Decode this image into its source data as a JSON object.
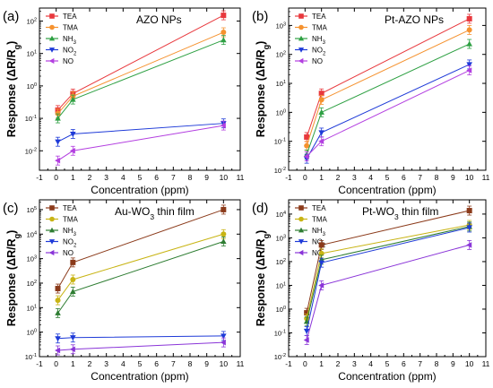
{
  "chart_data": [
    {
      "type": "line",
      "panel_label": "(a)",
      "title": "AZO NPs",
      "title_sub": "",
      "ylabel": "Response (ΔR/Rg)",
      "xlabel": "Concentration (ppm)",
      "xlim": [
        -1,
        11
      ],
      "xticks": [
        -1,
        0,
        1,
        2,
        3,
        4,
        5,
        6,
        7,
        8,
        9,
        10,
        11
      ],
      "ylim_exp": [
        -2.6,
        2.4
      ],
      "ylog": true,
      "yticks_exp": [
        -2,
        -1,
        0,
        1,
        2
      ],
      "x": [
        0.1,
        1,
        10
      ],
      "series": [
        {
          "name": "TEA",
          "name_sub": "",
          "color": "#e8383d",
          "marker": "square",
          "values": [
            0.18,
            0.58,
            150
          ]
        },
        {
          "name": "TMA",
          "name_sub": "",
          "color": "#f5922f",
          "marker": "circle",
          "values": [
            0.14,
            0.48,
            45
          ]
        },
        {
          "name": "NH",
          "name_sub": "3",
          "color": "#2ea043",
          "marker": "triangle-up",
          "values": [
            0.1,
            0.38,
            26
          ]
        },
        {
          "name": "NO",
          "name_sub": "2",
          "color": "#1f3bd8",
          "marker": "triangle-down",
          "values": [
            0.019,
            0.033,
            0.07
          ]
        },
        {
          "name": "NO",
          "name_sub": "",
          "color": "#b33fe0",
          "marker": "triangle-left",
          "values": [
            0.005,
            0.01,
            0.06
          ]
        }
      ]
    },
    {
      "type": "line",
      "panel_label": "(b)",
      "title": "Pt-AZO NPs",
      "title_sub": "",
      "ylabel": "Response (ΔR/Rg)",
      "xlabel": "Concentration (ppm)",
      "xlim": [
        -1,
        11
      ],
      "xticks": [
        -1,
        0,
        1,
        2,
        3,
        4,
        5,
        6,
        7,
        8,
        9,
        10,
        11
      ],
      "ylim_exp": [
        -2,
        3.6
      ],
      "ylog": true,
      "yticks_exp": [
        -2,
        -1,
        0,
        1,
        2,
        3
      ],
      "x": [
        0.1,
        1,
        10
      ],
      "series": [
        {
          "name": "TEA",
          "name_sub": "",
          "color": "#e8383d",
          "marker": "square",
          "values": [
            0.14,
            4.5,
            1700
          ]
        },
        {
          "name": "TMA",
          "name_sub": "",
          "color": "#f5922f",
          "marker": "circle",
          "values": [
            0.07,
            2.7,
            700
          ]
        },
        {
          "name": "NH",
          "name_sub": "3",
          "color": "#2ea043",
          "marker": "triangle-up",
          "values": [
            0.035,
            1.0,
            230
          ]
        },
        {
          "name": "NO",
          "name_sub": "2",
          "color": "#1f3bd8",
          "marker": "triangle-down",
          "values": [
            0.025,
            0.2,
            45
          ]
        },
        {
          "name": "NO",
          "name_sub": "",
          "color": "#b33fe0",
          "marker": "triangle-left",
          "values": [
            0.03,
            0.1,
            28
          ]
        }
      ]
    },
    {
      "type": "line",
      "panel_label": "(c)",
      "title": "Au-WO",
      "title_sub": "3",
      "title_after": " thin film",
      "ylabel": "Response (ΔR/Rg)",
      "xlabel": "Concentration (ppm)",
      "xlim": [
        -1,
        11
      ],
      "xticks": [
        -1,
        0,
        1,
        2,
        3,
        4,
        5,
        6,
        7,
        8,
        9,
        10,
        11
      ],
      "ylim_exp": [
        -1,
        5.4
      ],
      "ylog": true,
      "yticks_exp": [
        -1,
        0,
        1,
        2,
        3,
        4,
        5
      ],
      "x": [
        0.1,
        1,
        10
      ],
      "series": [
        {
          "name": "TEA",
          "name_sub": "",
          "color": "#8b3a1a",
          "marker": "square",
          "values": [
            60,
            700,
            100000
          ]
        },
        {
          "name": "TMA",
          "name_sub": "",
          "color": "#c8b414",
          "marker": "circle",
          "values": [
            20,
            140,
            10000
          ]
        },
        {
          "name": "NH",
          "name_sub": "3",
          "color": "#2e7d32",
          "marker": "triangle-up",
          "values": [
            6,
            45,
            5000
          ]
        },
        {
          "name": "NO",
          "name_sub": "2",
          "color": "#1f3bd8",
          "marker": "triangle-down",
          "values": [
            0.55,
            0.6,
            0.7
          ]
        },
        {
          "name": "NO",
          "name_sub": "",
          "color": "#8a35d8",
          "marker": "triangle-left",
          "values": [
            0.18,
            0.2,
            0.38
          ]
        }
      ]
    },
    {
      "type": "line",
      "panel_label": "(d)",
      "title": "Pt-WO",
      "title_sub": "3",
      "title_after": " thin film",
      "ylabel": "Response (ΔR/Rg)",
      "xlabel": "Concentration (ppm)",
      "xlim": [
        -1,
        11
      ],
      "xticks": [
        -1,
        0,
        1,
        2,
        3,
        4,
        5,
        6,
        7,
        8,
        9,
        10,
        11
      ],
      "ylim_exp": [
        -2,
        4.6
      ],
      "ylog": true,
      "yticks_exp": [
        -2,
        -1,
        0,
        1,
        2,
        3,
        4
      ],
      "x": [
        0.1,
        1,
        10
      ],
      "series": [
        {
          "name": "TEA",
          "name_sub": "",
          "color": "#8b3a1a",
          "marker": "square",
          "values": [
            0.7,
            500,
            14000
          ]
        },
        {
          "name": "TMA",
          "name_sub": "",
          "color": "#c8b414",
          "marker": "circle",
          "values": [
            0.4,
            220,
            3500
          ]
        },
        {
          "name": "NH",
          "name_sub": "3",
          "color": "#2e7d32",
          "marker": "triangle-up",
          "values": [
            0.3,
            120,
            3000
          ]
        },
        {
          "name": "NO",
          "name_sub": "2",
          "color": "#1f3bd8",
          "marker": "triangle-down",
          "values": [
            0.12,
            90,
            2700
          ]
        },
        {
          "name": "NO",
          "name_sub": "",
          "color": "#8a35d8",
          "marker": "triangle-left",
          "values": [
            0.05,
            10,
            500
          ]
        }
      ]
    }
  ]
}
